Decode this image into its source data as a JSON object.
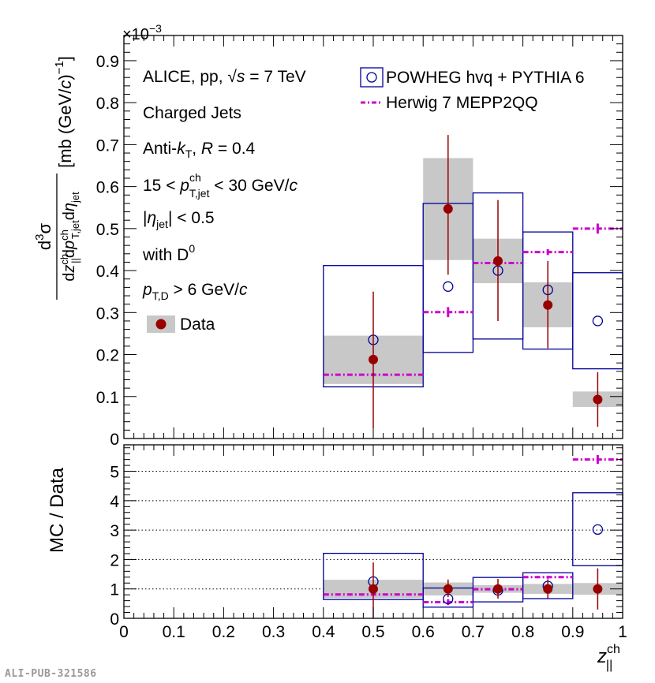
{
  "chart_data": {
    "type": "scatter",
    "annotations": {
      "lines": [
        "ALICE, pp, √s = 7 TeV",
        "Charged Jets",
        "Anti-kT, R = 0.4",
        "15 < pT,jet ch < 30 GeV/c",
        "|ηjet| < 0.5",
        "with D0",
        "pT,D > 6 GeV/c"
      ],
      "exponent": "×10−3"
    },
    "legend": {
      "data": "Data",
      "powheg": "POWHEG hvq + PYTHIA 6",
      "herwig": "Herwig 7 MEPP2QQ",
      "placement": "top-right"
    },
    "footer_id": "ALI-PUB-321586",
    "top_panel": {
      "ylabel": "d3σ / dz∥ch dpT,jetch dηjet [mb (GeV/c)−1]",
      "ylim": [
        0,
        0.00096
      ],
      "yticks": [
        0,
        0.1,
        0.2,
        0.3,
        0.4,
        0.5,
        0.6,
        0.7,
        0.8,
        0.9
      ],
      "ytick_labels": [
        "0",
        "0.1",
        "0.2",
        "0.3",
        "0.4",
        "0.5",
        "0.6",
        "0.7",
        "0.8",
        "0.9"
      ],
      "data": [
        {
          "x": 0.5,
          "xlo": 0.4,
          "xhi": 0.6,
          "y": 0.188,
          "stat_lo": 0.025,
          "stat_hi": 0.35,
          "sys_lo": 0.13,
          "sys_hi": 0.245
        },
        {
          "x": 0.65,
          "xlo": 0.6,
          "xhi": 0.7,
          "y": 0.547,
          "stat_lo": 0.39,
          "stat_hi": 0.723,
          "sys_lo": 0.425,
          "sys_hi": 0.668
        },
        {
          "x": 0.75,
          "xlo": 0.7,
          "xhi": 0.8,
          "y": 0.423,
          "stat_lo": 0.28,
          "stat_hi": 0.568,
          "sys_lo": 0.37,
          "sys_hi": 0.476
        },
        {
          "x": 0.85,
          "xlo": 0.8,
          "xhi": 0.9,
          "y": 0.318,
          "stat_lo": 0.215,
          "stat_hi": 0.423,
          "sys_lo": 0.265,
          "sys_hi": 0.372
        },
        {
          "x": 0.95,
          "xlo": 0.9,
          "xhi": 1.0,
          "y": 0.093,
          "stat_lo": 0.028,
          "stat_hi": 0.158,
          "sys_lo": 0.075,
          "sys_hi": 0.112
        }
      ],
      "powheg": [
        {
          "x": 0.5,
          "xlo": 0.4,
          "xhi": 0.6,
          "y": 0.235,
          "lo": 0.123,
          "hi": 0.412
        },
        {
          "x": 0.65,
          "xlo": 0.6,
          "xhi": 0.7,
          "y": 0.362,
          "lo": 0.205,
          "hi": 0.56
        },
        {
          "x": 0.75,
          "xlo": 0.7,
          "xhi": 0.8,
          "y": 0.4,
          "lo": 0.237,
          "hi": 0.585
        },
        {
          "x": 0.85,
          "xlo": 0.8,
          "xhi": 0.9,
          "y": 0.354,
          "lo": 0.213,
          "hi": 0.492
        },
        {
          "x": 0.95,
          "xlo": 0.9,
          "xhi": 1.0,
          "y": 0.28,
          "lo": 0.166,
          "hi": 0.395
        }
      ],
      "herwig": [
        {
          "xlo": 0.4,
          "xhi": 0.6,
          "y": 0.152,
          "err": 0.004
        },
        {
          "xlo": 0.6,
          "xhi": 0.7,
          "y": 0.301,
          "err": 0.012
        },
        {
          "xlo": 0.7,
          "xhi": 0.8,
          "y": 0.418,
          "err": 0.007
        },
        {
          "xlo": 0.8,
          "xhi": 0.9,
          "y": 0.444,
          "err": 0.007
        },
        {
          "xlo": 0.9,
          "xhi": 1.0,
          "y": 0.5,
          "err": 0.012
        }
      ]
    },
    "bottom_panel": {
      "ylabel": "MC / Data",
      "ylim": [
        0,
        5.9
      ],
      "yticks": [
        0,
        1,
        2,
        3,
        4,
        5
      ],
      "ytick_labels": [
        "0",
        "1",
        "2",
        "3",
        "4",
        "5"
      ],
      "gridlines": [
        1,
        2,
        3,
        4,
        5
      ],
      "data_band": [
        {
          "xlo": 0.4,
          "xhi": 0.6,
          "lo": 0.69,
          "hi": 1.31
        },
        {
          "xlo": 0.6,
          "xhi": 0.7,
          "lo": 0.78,
          "hi": 1.22
        },
        {
          "xlo": 0.7,
          "xhi": 0.8,
          "lo": 0.87,
          "hi": 1.13
        },
        {
          "xlo": 0.8,
          "xhi": 0.9,
          "lo": 0.83,
          "hi": 1.17
        },
        {
          "xlo": 0.9,
          "xhi": 1.0,
          "lo": 0.8,
          "hi": 1.2
        }
      ],
      "data": [
        {
          "x": 0.5,
          "y": 1.0,
          "lo": 0.0,
          "hi": 1.9
        },
        {
          "x": 0.65,
          "y": 1.0,
          "lo": 0.72,
          "hi": 1.32
        },
        {
          "x": 0.75,
          "y": 1.0,
          "lo": 0.67,
          "hi": 1.34
        },
        {
          "x": 0.85,
          "y": 1.0,
          "lo": 0.68,
          "hi": 1.33
        },
        {
          "x": 0.95,
          "y": 1.0,
          "lo": 0.3,
          "hi": 1.7
        }
      ],
      "powheg": [
        {
          "x": 0.5,
          "xlo": 0.4,
          "xhi": 0.6,
          "y": 1.25,
          "lo": 0.64,
          "hi": 2.21
        },
        {
          "x": 0.65,
          "xlo": 0.6,
          "xhi": 0.7,
          "y": 0.66,
          "lo": 0.38,
          "hi": 1.03
        },
        {
          "x": 0.75,
          "xlo": 0.7,
          "xhi": 0.8,
          "y": 0.95,
          "lo": 0.56,
          "hi": 1.39
        },
        {
          "x": 0.85,
          "xlo": 0.8,
          "xhi": 0.9,
          "y": 1.1,
          "lo": 0.67,
          "hi": 1.55
        },
        {
          "x": 0.95,
          "xlo": 0.9,
          "xhi": 1.0,
          "y": 3.02,
          "lo": 1.79,
          "hi": 4.27
        }
      ],
      "herwig": [
        {
          "xlo": 0.4,
          "xhi": 0.6,
          "y": 0.81,
          "err": 0.02
        },
        {
          "xlo": 0.6,
          "xhi": 0.7,
          "y": 0.55,
          "err": 0.1
        },
        {
          "xlo": 0.7,
          "xhi": 0.8,
          "y": 0.99,
          "err": 0.04
        },
        {
          "xlo": 0.8,
          "xhi": 0.9,
          "y": 1.4,
          "err": 0.05
        },
        {
          "xlo": 0.9,
          "xhi": 1.0,
          "y": 5.4,
          "err": 0.15
        }
      ]
    },
    "x_axis": {
      "label": "z∥ch",
      "xlim": [
        0,
        1
      ],
      "ticks": [
        0,
        0.1,
        0.2,
        0.3,
        0.4,
        0.5,
        0.6,
        0.7,
        0.8,
        0.9,
        1
      ],
      "tick_labels": [
        "0",
        "0.1",
        "0.2",
        "0.3",
        "0.4",
        "0.5",
        "0.6",
        "0.7",
        "0.8",
        "0.9",
        "1"
      ]
    },
    "colors": {
      "data": "#990000",
      "data_band": "#c8c8c8",
      "powheg": "#000099",
      "herwig": "#cc00cc",
      "axis": "#000000",
      "grid": "#000000"
    }
  }
}
